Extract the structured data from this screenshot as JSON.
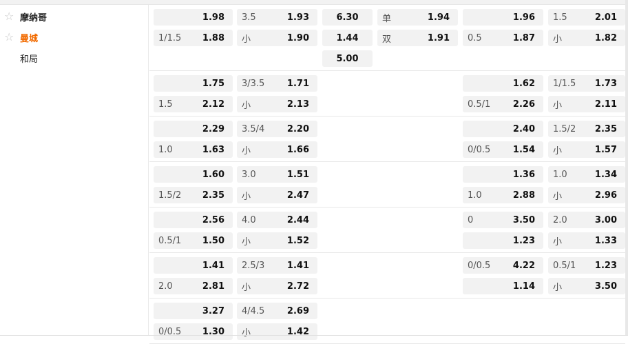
{
  "teams": [
    {
      "name": "摩纳哥",
      "icon": "star-icon"
    },
    {
      "name": "曼城",
      "icon": "star-icon",
      "color": "#f26b00"
    },
    {
      "name": "和局"
    }
  ],
  "blocks": [
    {
      "rows": [
        [
          [
            "",
            "1.98"
          ],
          [
            "3.5",
            "1.93"
          ],
          [
            "",
            "6.30"
          ],
          [
            "单",
            "1.94"
          ],
          [
            "",
            "1.96"
          ],
          [
            "1.5",
            "2.01"
          ]
        ],
        [
          [
            "1/1.5",
            "1.88"
          ],
          [
            "小",
            "1.90"
          ],
          [
            "",
            "1.44"
          ],
          [
            "双",
            "1.91"
          ],
          [
            "0.5",
            "1.87"
          ],
          [
            "小",
            "1.82"
          ]
        ],
        [
          null,
          null,
          [
            "",
            "5.00"
          ],
          null,
          null,
          null
        ]
      ]
    },
    {
      "rows": [
        [
          [
            "",
            "1.75"
          ],
          [
            "3/3.5",
            "1.71"
          ],
          null,
          null,
          [
            "",
            "1.62"
          ],
          [
            "1/1.5",
            "1.73"
          ]
        ],
        [
          [
            "1.5",
            "2.12"
          ],
          [
            "小",
            "2.13"
          ],
          null,
          null,
          [
            "0.5/1",
            "2.26"
          ],
          [
            "小",
            "2.11"
          ]
        ]
      ]
    },
    {
      "rows": [
        [
          [
            "",
            "2.29"
          ],
          [
            "3.5/4",
            "2.20"
          ],
          null,
          null,
          [
            "",
            "2.40"
          ],
          [
            "1.5/2",
            "2.35"
          ]
        ],
        [
          [
            "1.0",
            "1.63"
          ],
          [
            "小",
            "1.66"
          ],
          null,
          null,
          [
            "0/0.5",
            "1.54"
          ],
          [
            "小",
            "1.57"
          ]
        ]
      ]
    },
    {
      "rows": [
        [
          [
            "",
            "1.60"
          ],
          [
            "3.0",
            "1.51"
          ],
          null,
          null,
          [
            "",
            "1.36"
          ],
          [
            "1.0",
            "1.34"
          ]
        ],
        [
          [
            "1.5/2",
            "2.35"
          ],
          [
            "小",
            "2.47"
          ],
          null,
          null,
          [
            "1.0",
            "2.88"
          ],
          [
            "小",
            "2.96"
          ]
        ]
      ]
    },
    {
      "rows": [
        [
          [
            "",
            "2.56"
          ],
          [
            "4.0",
            "2.44"
          ],
          null,
          null,
          [
            "0",
            "3.50"
          ],
          [
            "2.0",
            "3.00"
          ]
        ],
        [
          [
            "0.5/1",
            "1.50"
          ],
          [
            "小",
            "1.52"
          ],
          null,
          null,
          [
            "",
            "1.23"
          ],
          [
            "小",
            "1.33"
          ]
        ]
      ]
    },
    {
      "rows": [
        [
          [
            "",
            "1.41"
          ],
          [
            "2.5/3",
            "1.41"
          ],
          null,
          null,
          [
            "0/0.5",
            "4.22"
          ],
          [
            "0.5/1",
            "1.23"
          ]
        ],
        [
          [
            "2.0",
            "2.81"
          ],
          [
            "小",
            "2.72"
          ],
          null,
          null,
          [
            "",
            "1.14"
          ],
          [
            "小",
            "3.50"
          ]
        ]
      ]
    },
    {
      "rows": [
        [
          [
            "",
            "3.27"
          ],
          [
            "4/4.5",
            "2.69"
          ],
          null,
          null,
          null,
          null
        ],
        [
          [
            "0/0.5",
            "1.30"
          ],
          [
            "小",
            "1.42"
          ],
          null,
          null,
          null,
          null
        ]
      ]
    }
  ]
}
